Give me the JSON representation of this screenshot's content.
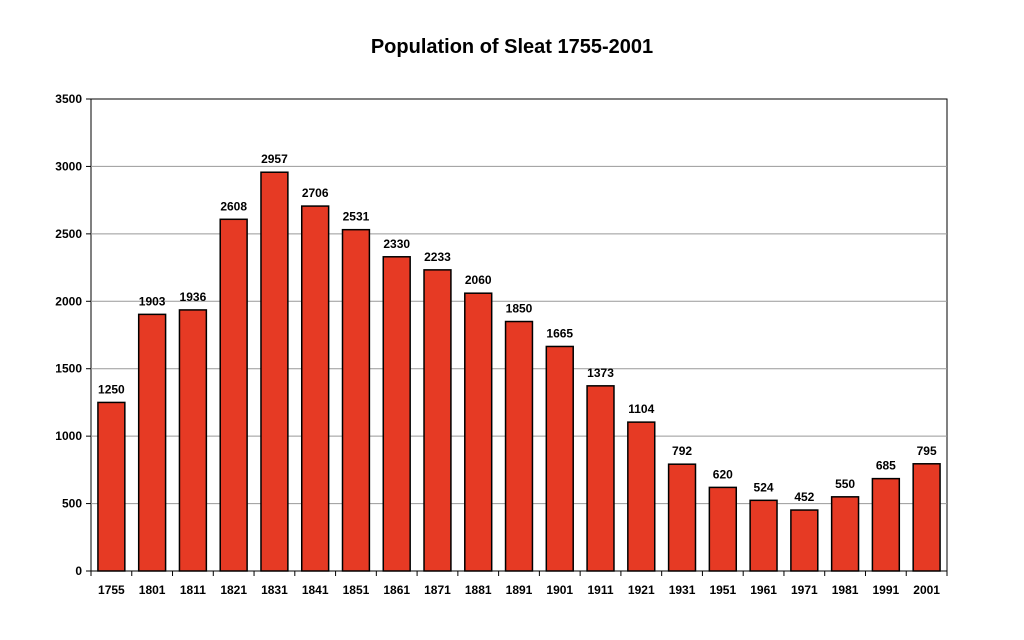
{
  "chart_data": {
    "type": "bar",
    "title": "Population of Sleat 1755-2001",
    "xlabel": "",
    "ylabel": "",
    "categories": [
      "1755",
      "1801",
      "1811",
      "1821",
      "1831",
      "1841",
      "1851",
      "1861",
      "1871",
      "1881",
      "1891",
      "1901",
      "1911",
      "1921",
      "1931",
      "1951",
      "1961",
      "1971",
      "1981",
      "1991",
      "2001"
    ],
    "values": [
      1250,
      1903,
      1936,
      2608,
      2957,
      2706,
      2531,
      2330,
      2233,
      2060,
      1850,
      1665,
      1373,
      1104,
      792,
      620,
      524,
      452,
      550,
      685,
      795
    ],
    "ylim": [
      0,
      3500
    ],
    "yticks": [
      0,
      500,
      1000,
      1500,
      2000,
      2500,
      3000,
      3500
    ],
    "grid": true,
    "legend": "none",
    "colors": {
      "bar": "#e63a24",
      "bar_stroke": "#000000",
      "grid": "#999999",
      "axis": "#000000"
    }
  }
}
